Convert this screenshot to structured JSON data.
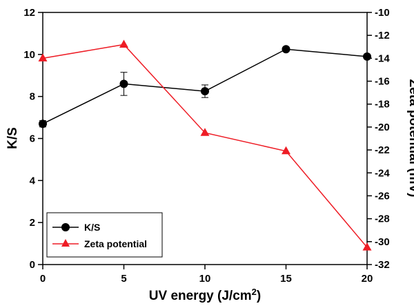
{
  "chart_data": {
    "type": "line",
    "title": "",
    "x": [
      0,
      5,
      10,
      15,
      20
    ],
    "xlabel": "UV energy (J/cm",
    "xlabel_sup": "2",
    "xlabel_close": ")",
    "xlim": [
      0,
      20
    ],
    "xticks": [
      "0",
      "5",
      "10",
      "15",
      "20"
    ],
    "ylabel_left": "K/S",
    "ylim_left": [
      0,
      12
    ],
    "yticks_left": [
      "0",
      "2",
      "4",
      "6",
      "8",
      "10",
      "12"
    ],
    "ylabel_right": "Zeta potential (mV)",
    "ylim_right": [
      -32,
      -10
    ],
    "yticks_right": [
      "-10",
      "-12",
      "-14",
      "-16",
      "-18",
      "-20",
      "-22",
      "-24",
      "-26",
      "-28",
      "-30",
      "-32"
    ],
    "grid": false,
    "legend_position": "bottom-left",
    "series": [
      {
        "name": "K/S",
        "axis": "left",
        "color": "#000000",
        "marker": "circle",
        "values": [
          6.7,
          8.6,
          8.25,
          10.25,
          9.9
        ],
        "error": [
          0.15,
          0.55,
          0.3,
          0.0,
          0.0
        ]
      },
      {
        "name": "Zeta potential",
        "axis": "right",
        "color": "#ee1c25",
        "marker": "triangle",
        "values": [
          -14.0,
          -12.8,
          -20.5,
          -22.1,
          -30.5
        ]
      }
    ]
  }
}
